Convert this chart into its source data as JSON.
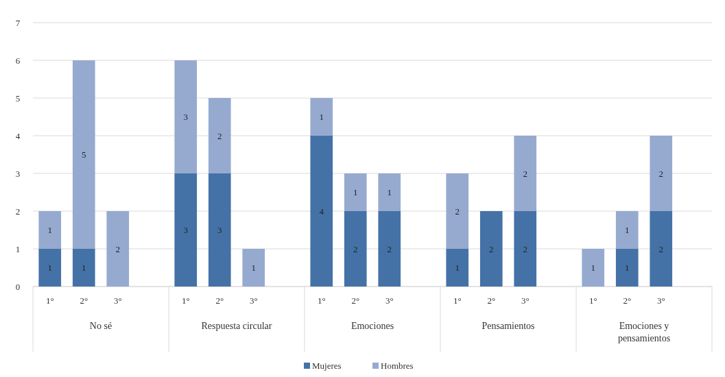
{
  "chart_data": {
    "type": "bar",
    "stacked": true,
    "categories": [
      "1°",
      "2°",
      "3°",
      "1°",
      "2°",
      "3°",
      "1°",
      "2°",
      "3°",
      "1°",
      "2°",
      "3°",
      "1°",
      "2°",
      "3°"
    ],
    "annotations": [
      "No sé",
      "Respuesta circular",
      "Emociones",
      "Pensamientos",
      "Emociones y pensamientos"
    ],
    "series": [
      {
        "name": "Mujeres",
        "color": "#4472a6",
        "values": [
          1,
          1,
          null,
          3,
          3,
          null,
          4,
          2,
          2,
          1,
          2,
          2,
          null,
          1,
          2
        ]
      },
      {
        "name": "Hombres",
        "color": "#96aad0",
        "values": [
          1,
          5,
          2,
          3,
          2,
          1,
          1,
          1,
          1,
          2,
          null,
          2,
          1,
          1,
          2
        ]
      }
    ],
    "ylim": [
      0,
      7
    ],
    "yticks": [
      0,
      1,
      2,
      3,
      4,
      5,
      6,
      7
    ],
    "grid": "y",
    "legend": "bottom",
    "data_labels": true
  }
}
